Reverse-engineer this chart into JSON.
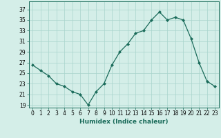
{
  "x": [
    0,
    1,
    2,
    3,
    4,
    5,
    6,
    7,
    8,
    9,
    10,
    11,
    12,
    13,
    14,
    15,
    16,
    17,
    18,
    19,
    20,
    21,
    22,
    23
  ],
  "y": [
    26.5,
    25.5,
    24.5,
    23.0,
    22.5,
    21.5,
    21.0,
    19.0,
    21.5,
    23.0,
    26.5,
    29.0,
    30.5,
    32.5,
    33.0,
    35.0,
    36.5,
    35.0,
    35.5,
    35.0,
    31.5,
    27.0,
    23.5,
    22.5
  ],
  "line_color": "#1a6b5a",
  "marker": "D",
  "marker_size": 2.0,
  "bg_color": "#d4eee8",
  "grid_color": "#a8d4cc",
  "xlabel": "Humidex (Indice chaleur)",
  "ylabel_ticks": [
    19,
    21,
    23,
    25,
    27,
    29,
    31,
    33,
    35,
    37
  ],
  "ylim": [
    18.5,
    38.5
  ],
  "xlim": [
    -0.5,
    23.5
  ],
  "xticks": [
    0,
    1,
    2,
    3,
    4,
    5,
    6,
    7,
    8,
    9,
    10,
    11,
    12,
    13,
    14,
    15,
    16,
    17,
    18,
    19,
    20,
    21,
    22,
    23
  ],
  "tick_fontsize": 5.5,
  "label_fontsize": 6.5
}
